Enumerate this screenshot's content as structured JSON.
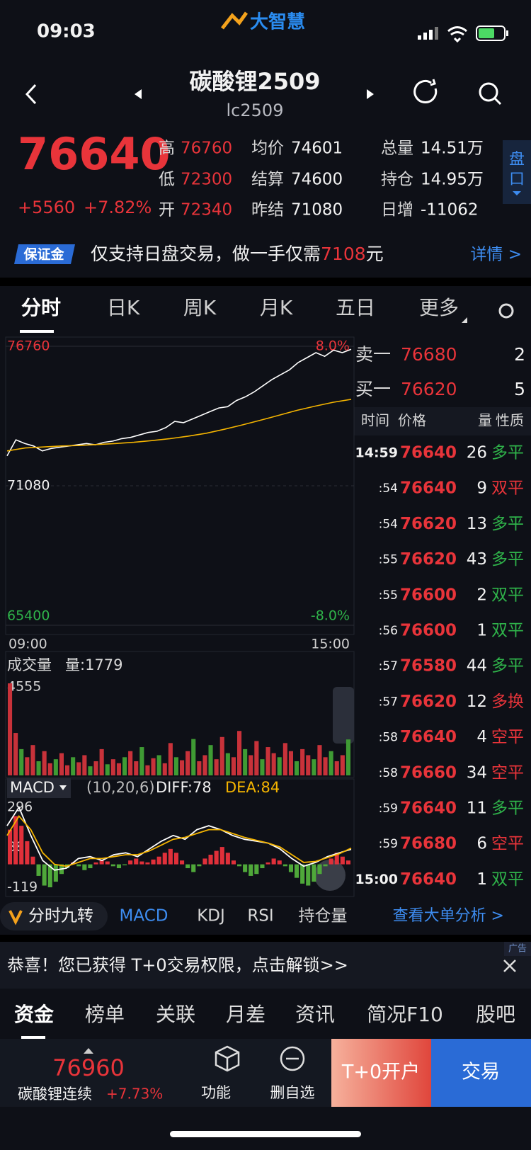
{
  "status_bar": {
    "time": "09:03",
    "app": "大智慧"
  },
  "header": {
    "title": "碳酸锂2509",
    "code": "lc2509"
  },
  "quote": {
    "price": "76640",
    "change": "+5560",
    "change_pct": "+7.82%",
    "stats": [
      {
        "label": "高",
        "value": "76760"
      },
      {
        "label": "低",
        "value": "72300"
      },
      {
        "label": "开",
        "value": "72340"
      },
      {
        "label": "均价",
        "value": "74601"
      },
      {
        "label": "结算",
        "value": "74600"
      },
      {
        "label": "昨结",
        "value": "71080"
      },
      {
        "label": "总量",
        "value": "14.51万"
      },
      {
        "label": "持仓",
        "value": "14.95万"
      },
      {
        "label": "日增",
        "value": "-11062"
      }
    ],
    "panel_button": "盘口"
  },
  "banner": {
    "badge": "保证金",
    "text": "仅支持日盘交易，做一手仅需",
    "amount": "7108",
    "unit": "元",
    "link": "详情 >"
  },
  "tabs": [
    "分时",
    "日K",
    "周K",
    "月K",
    "五日",
    "更多"
  ],
  "intraday": {
    "ylim": [
      65400,
      76760
    ],
    "yticks": [
      76760,
      71080,
      65400
    ],
    "pct_labels": [
      "8.0%",
      "-8.0%"
    ],
    "time_labels": [
      "09:00",
      "15:00"
    ],
    "price": [
      72300,
      72950,
      72800,
      72700,
      72500,
      72600,
      72650,
      72700,
      72750,
      72800,
      72750,
      72850,
      72900,
      73000,
      73050,
      73150,
      73250,
      73300,
      73450,
      73700,
      73650,
      73800,
      73950,
      74100,
      74250,
      74300,
      74550,
      74700,
      74900,
      75150,
      75400,
      75600,
      75800,
      76100,
      76300,
      76500,
      76350,
      76600,
      76500,
      76640
    ],
    "avg": [
      72500,
      72620,
      72660,
      72700,
      72720,
      72760,
      72800,
      72850,
      72920,
      73000,
      73100,
      73220,
      73380,
      73560,
      73750,
      73950,
      74150,
      74320,
      74480,
      74600
    ]
  },
  "volume": {
    "title": "成交量",
    "current": "量:1779",
    "max_label": "4555",
    "ylim": [
      0,
      4555
    ],
    "values": [
      4555,
      2100,
      1300,
      900,
      1500,
      700,
      1200,
      600,
      800,
      1100,
      500,
      900,
      650,
      1000,
      450,
      700,
      1300,
      550,
      800,
      600,
      900,
      1200,
      700,
      1400,
      500,
      850,
      1000,
      600,
      1600,
      900,
      750,
      1200,
      1800,
      700,
      1000,
      1500,
      800,
      1900,
      1100,
      900,
      2200,
      1300,
      1000,
      1700,
      800,
      1400,
      1100,
      900,
      1600,
      1200,
      700,
      1300,
      1000,
      800,
      1500,
      900,
      1200,
      700,
      1000,
      1779
    ]
  },
  "macd": {
    "name": "MACD",
    "params": "(10,20,6)",
    "diff": "DIFF:78",
    "dea": "DEA:84",
    "ylim": [
      -119,
      296
    ],
    "yticks": [
      296,
      88,
      -119
    ],
    "histogram": [
      180,
      250,
      200,
      120,
      40,
      -60,
      -110,
      -119,
      -90,
      -50,
      -20,
      10,
      -10,
      -30,
      -20,
      10,
      20,
      15,
      -10,
      -20,
      -5,
      20,
      30,
      15,
      10,
      25,
      40,
      60,
      80,
      60,
      20,
      -20,
      -40,
      -10,
      30,
      50,
      70,
      90,
      60,
      20,
      -10,
      -40,
      -60,
      -50,
      -20,
      10,
      30,
      20,
      -10,
      -40,
      -70,
      -100,
      -110,
      -90,
      -50,
      -10,
      30,
      60,
      40,
      20
    ],
    "diff_line": [
      200,
      296,
      150,
      20,
      -30,
      -20,
      30,
      40,
      20,
      50,
      60,
      40,
      80,
      120,
      150,
      130,
      180,
      200,
      180,
      150,
      130,
      120,
      110,
      80,
      30,
      -10,
      10,
      40,
      60,
      78
    ],
    "dea_line": [
      150,
      250,
      180,
      60,
      0,
      -10,
      10,
      30,
      30,
      40,
      50,
      50,
      70,
      100,
      130,
      140,
      160,
      180,
      180,
      160,
      140,
      125,
      110,
      90,
      50,
      10,
      15,
      35,
      55,
      84
    ]
  },
  "order_book": {
    "ask": {
      "label": "卖一",
      "price": "76680",
      "qty": "2"
    },
    "bid": {
      "label": "买一",
      "price": "76620",
      "qty": "5"
    },
    "columns": [
      "时间",
      "价格",
      "量",
      "性质"
    ],
    "trades": [
      {
        "time": "14:59",
        "price": "76640",
        "qty": "26",
        "type": "多平",
        "color": "#2fb34a"
      },
      {
        "time": ":54",
        "price": "76640",
        "qty": "9",
        "type": "双平",
        "color": "#e8343a"
      },
      {
        "time": ":54",
        "price": "76620",
        "qty": "13",
        "type": "多平",
        "color": "#2fb34a"
      },
      {
        "time": ":55",
        "price": "76620",
        "qty": "43",
        "type": "多平",
        "color": "#2fb34a"
      },
      {
        "time": ":55",
        "price": "76600",
        "qty": "2",
        "type": "双平",
        "color": "#2fb34a"
      },
      {
        "time": ":56",
        "price": "76600",
        "qty": "1",
        "type": "双平",
        "color": "#2fb34a"
      },
      {
        "time": ":57",
        "price": "76580",
        "qty": "44",
        "type": "多平",
        "color": "#2fb34a"
      },
      {
        "time": ":57",
        "price": "76620",
        "qty": "12",
        "type": "多换",
        "color": "#e8343a"
      },
      {
        "time": ":58",
        "price": "76640",
        "qty": "4",
        "type": "空平",
        "color": "#e8343a"
      },
      {
        "time": ":58",
        "price": "76660",
        "qty": "34",
        "type": "空平",
        "color": "#e8343a"
      },
      {
        "time": ":59",
        "price": "76640",
        "qty": "11",
        "type": "多平",
        "color": "#2fb34a"
      },
      {
        "time": ":59",
        "price": "76680",
        "qty": "6",
        "type": "空平",
        "color": "#e8343a"
      },
      {
        "time": "15:00",
        "price": "76640",
        "qty": "1",
        "type": "双平",
        "color": "#2fb34a"
      }
    ]
  },
  "indicator_tabs": {
    "special": "分时九转",
    "items": [
      "MACD",
      "KDJ",
      "RSI",
      "持仓量"
    ],
    "link": "查看大单分析 >"
  },
  "ad": {
    "text": "恭喜！您已获得 T+0交易权限，点击解锁>>",
    "tag": "广告"
  },
  "bottom_tabs": [
    "资金",
    "榜单",
    "关联",
    "月差",
    "资讯",
    "简况F10",
    "股吧"
  ],
  "footer": {
    "price": "76960",
    "name": "碳酸锂连续",
    "change": "+7.73%",
    "actions": [
      "功能",
      "删自选"
    ],
    "open_account": "T+0开户",
    "trade": "交易"
  }
}
